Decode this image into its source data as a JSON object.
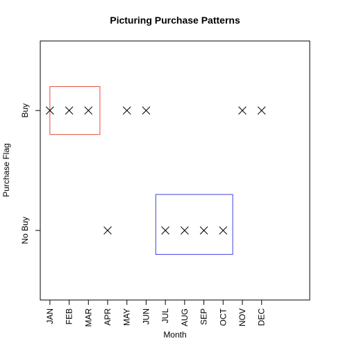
{
  "chart_data": {
    "type": "scatter",
    "title": "Picturing Purchase Patterns",
    "xlabel": "Month",
    "ylabel": "Purchase Flag",
    "categories": [
      "JAN",
      "FEB",
      "MAR",
      "APR",
      "MAY",
      "JUN",
      "JUL",
      "AUG",
      "SEP",
      "OCT",
      "NOV",
      "DEC"
    ],
    "y_categories": [
      "No Buy",
      "Buy"
    ],
    "values": [
      "Buy",
      "Buy",
      "Buy",
      "No Buy",
      "Buy",
      "Buy",
      "No Buy",
      "No Buy",
      "No Buy",
      "No Buy",
      "Buy",
      "Buy"
    ],
    "marker": "x",
    "xlim": [
      -0.5,
      13.5
    ],
    "ylim": [
      -0.58,
      1.58
    ],
    "grid": false,
    "highlight_boxes": [
      {
        "x_from": 0,
        "x_to": 2.6,
        "y_from": 0.8,
        "y_to": 1.2,
        "color": "#e8483a"
      },
      {
        "x_from": 5.5,
        "x_to": 9.5,
        "y_from": -0.2,
        "y_to": 0.3,
        "color": "#4040e0"
      }
    ]
  }
}
